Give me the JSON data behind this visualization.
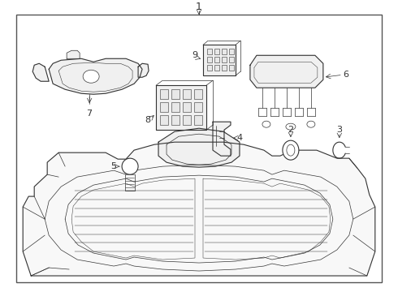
{
  "bg_color": "#ffffff",
  "border_color": "#555555",
  "line_color": "#333333",
  "label_color": "#111111",
  "fig_width": 4.9,
  "fig_height": 3.6,
  "dpi": 100
}
